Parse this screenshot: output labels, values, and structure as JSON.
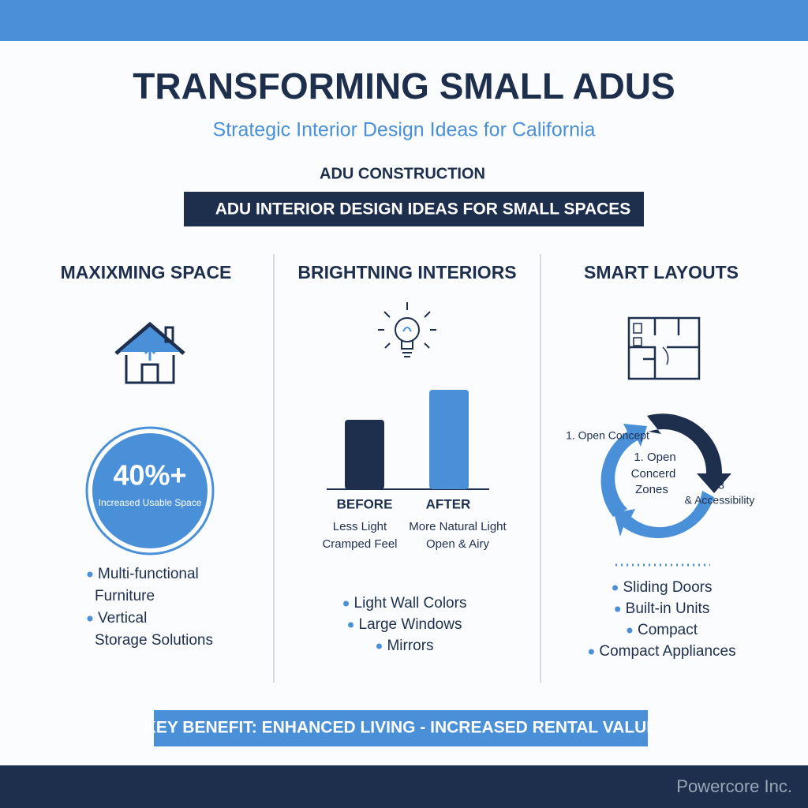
{
  "header": {
    "title": "TRANSFORMING SMALL ADUS",
    "subtitle": "Strategic Interior Design Ideas for California",
    "kicker": "ADU CONSTRUCTION",
    "banner": "ADU INTERIOR DESIGN IDEAS FOR SMALL SPACES"
  },
  "columns": [
    {
      "heading": "MAXIXMING SPACE",
      "stat": {
        "value": "40%+",
        "caption": "Increased Usable Space"
      },
      "bullets": [
        [
          "Multi-functional",
          "Furniture"
        ],
        [
          "Vertical",
          "Storage Solutions"
        ]
      ]
    },
    {
      "heading": "BRIGHTNING INTERIORS",
      "bars": [
        {
          "label": "BEFORE",
          "notes": [
            "Less Light",
            "Cramped Feel"
          ]
        },
        {
          "label": "AFTER",
          "notes": [
            "More Natural Light",
            "Open & Airy"
          ]
        }
      ],
      "bullets": [
        [
          "Light Wall Colors"
        ],
        [
          "Large Windows"
        ],
        [
          "Mirrors"
        ]
      ]
    },
    {
      "heading": "SMART LAYOUTS",
      "cycle": {
        "outer_label": "1. Open Concept",
        "center": [
          "1. Open",
          "Concerd",
          "Zones"
        ],
        "side": [
          "3",
          "& Accessibility"
        ]
      },
      "bullets": [
        [
          "Sliding Doors"
        ],
        [
          "Built-in Units"
        ],
        [
          "Compact"
        ],
        [
          "Compact Appliances"
        ]
      ]
    }
  ],
  "footer": {
    "benefit": "KEY BENEFIT: ENHANCED LIVING - INCREASED RENTAL VALUE",
    "brand": "Powercore Inc."
  }
}
